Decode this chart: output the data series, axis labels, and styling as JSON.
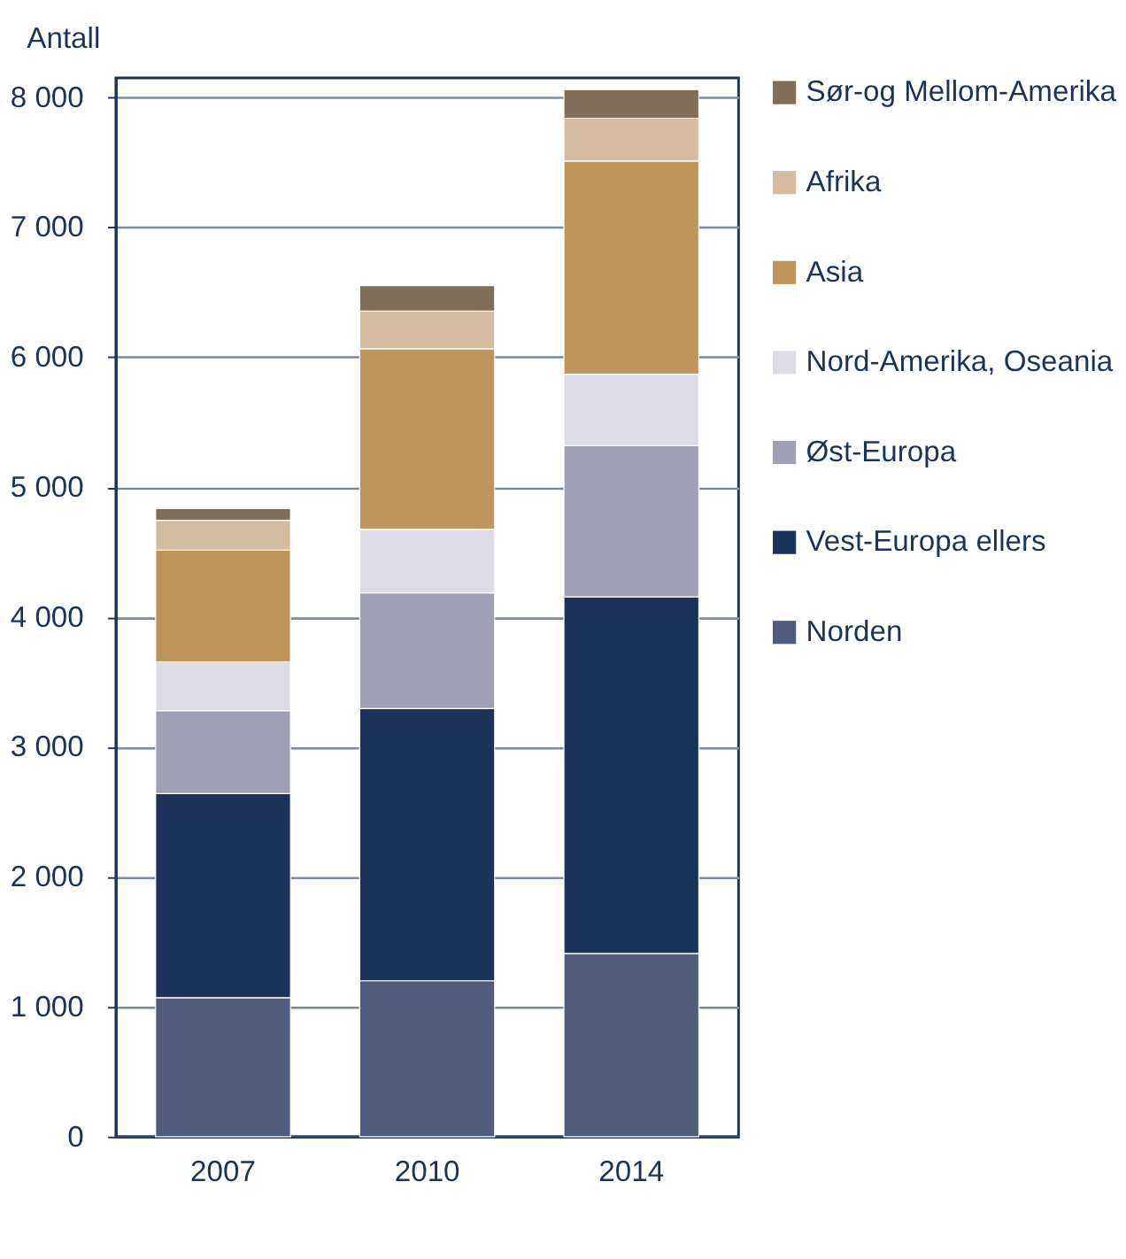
{
  "chart_data": {
    "type": "bar",
    "stacked": true,
    "ylabel": "Antall",
    "categories": [
      "2007",
      "2010",
      "2014"
    ],
    "series": [
      {
        "name": "Norden",
        "color": "#515b7b",
        "values": [
          1070,
          1200,
          1410
        ]
      },
      {
        "name": "Vest-Europa ellers",
        "color": "#1c3359",
        "values": [
          1570,
          2095,
          2745
        ]
      },
      {
        "name": "Øst-Europa",
        "color": "#a0a0b4",
        "values": [
          640,
          890,
          1165
        ]
      },
      {
        "name": "Nord-Amerika, Oseania",
        "color": "#dddce6",
        "values": [
          375,
          490,
          550
        ]
      },
      {
        "name": "Asia",
        "color": "#be965c",
        "values": [
          860,
          1390,
          1640
        ]
      },
      {
        "name": "Afrika",
        "color": "#d5bba0",
        "values": [
          230,
          290,
          330
        ]
      },
      {
        "name": "Sør-og Mellom-Amerika",
        "color": "#7f6e58",
        "values": [
          90,
          195,
          220
        ]
      }
    ],
    "ylim": [
      0,
      8150
    ],
    "yticks": [
      {
        "value": 0,
        "label": "0"
      },
      {
        "value": 1000,
        "label": "1 000"
      },
      {
        "value": 2000,
        "label": "2 000"
      },
      {
        "value": 3000,
        "label": "3 000"
      },
      {
        "value": 4000,
        "label": "4 000"
      },
      {
        "value": 5000,
        "label": "5 000"
      },
      {
        "value": 6000,
        "label": "6 000"
      },
      {
        "value": 7000,
        "label": "7 000"
      },
      {
        "value": 8000,
        "label": "8 000"
      }
    ],
    "grid": "y",
    "legend": "right"
  }
}
